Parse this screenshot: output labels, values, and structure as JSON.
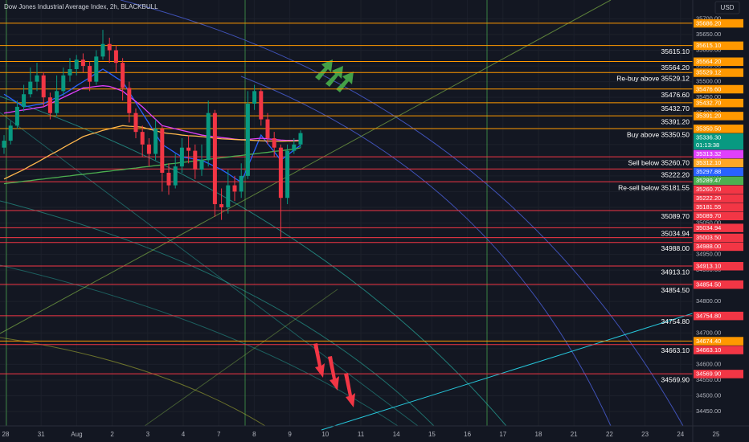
{
  "chart_data": {
    "type": "candlestick",
    "title": "Dow Jones Industrial Average Index, 2h, BLACKBULL",
    "currency": "USD",
    "ylim": [
      34404,
      35760
    ],
    "yticks": [
      {
        "value": 35700,
        "label": "35700.00"
      },
      {
        "value": 35650,
        "label": "35650.00"
      },
      {
        "value": 35600,
        "label": "35600.00"
      },
      {
        "value": 35550,
        "label": "35550.00"
      },
      {
        "value": 35500,
        "label": "35500.00"
      },
      {
        "value": 35450,
        "label": "35450.00"
      },
      {
        "value": 35400,
        "label": "35400.00"
      },
      {
        "value": 35350,
        "label": "35350.00"
      },
      {
        "value": 35300,
        "label": "35300.00"
      },
      {
        "value": 35250,
        "label": "35250.00"
      },
      {
        "value": 35200,
        "label": "35200.00"
      },
      {
        "value": 35150,
        "label": "35150.00"
      },
      {
        "value": 35100,
        "label": "35100.00"
      },
      {
        "value": 35050,
        "label": "35050.00"
      },
      {
        "value": 35000,
        "label": "35000.00"
      },
      {
        "value": 34950,
        "label": "34950.00"
      },
      {
        "value": 34900,
        "label": "34900.00"
      },
      {
        "value": 34850,
        "label": "34850.00"
      },
      {
        "value": 34800,
        "label": "34800.00"
      },
      {
        "value": 34750,
        "label": "34750.00"
      },
      {
        "value": 34700,
        "label": "34700.00"
      },
      {
        "value": 34650,
        "label": "34650.00"
      },
      {
        "value": 34600,
        "label": "34600.00"
      },
      {
        "value": 34550,
        "label": "34550.00"
      },
      {
        "value": 34500,
        "label": "34500.00"
      },
      {
        "value": 34450,
        "label": "34450.00"
      }
    ],
    "dates": [
      "28",
      "31",
      "Aug",
      "2",
      "3",
      "4",
      "7",
      "8",
      "9",
      "10",
      "11",
      "14",
      "15",
      "16",
      "17",
      "18",
      "21",
      "22",
      "23",
      "24",
      "25"
    ],
    "up_color": "#089981",
    "down_color": "#f23645",
    "open": [
      35290,
      35312,
      35360,
      35420,
      35460,
      35500,
      35520,
      35450,
      35400,
      35470,
      35520,
      35540,
      35570,
      35550,
      35500,
      35580,
      35620,
      35600,
      35560,
      35480,
      35400,
      35340,
      35300,
      35270,
      35350,
      35210,
      35170,
      35230,
      35290,
      35280,
      35220,
      35250,
      35400,
      35110,
      35100,
      35170,
      35150,
      35200,
      35430,
      35470,
      35380,
      35320,
      35290,
      35130,
      35280,
      35300
    ],
    "high": [
      35330,
      35375,
      35440,
      35490,
      35545,
      35560,
      35530,
      35465,
      35520,
      35545,
      35575,
      35585,
      35590,
      35565,
      35600,
      35665,
      35640,
      35615,
      35575,
      35500,
      35415,
      35360,
      35320,
      35380,
      35360,
      35240,
      35270,
      35320,
      35330,
      35300,
      35300,
      35440,
      35410,
      35160,
      35220,
      35200,
      35240,
      35470,
      35490,
      35480,
      35400,
      35340,
      35300,
      35300,
      35320,
      35345
    ],
    "low": [
      35270,
      35300,
      35350,
      35405,
      35450,
      35470,
      35420,
      35380,
      35390,
      35455,
      35500,
      35520,
      35530,
      35470,
      35490,
      35570,
      35560,
      35530,
      35440,
      35370,
      35320,
      35260,
      35230,
      35250,
      35150,
      35140,
      35160,
      35210,
      35240,
      35190,
      35200,
      35230,
      35070,
      35060,
      35080,
      35120,
      35130,
      35190,
      35410,
      35360,
      35300,
      35260,
      35000,
      35110,
      35270,
      35290
    ],
    "close": [
      35312,
      35360,
      35420,
      35460,
      35500,
      35520,
      35450,
      35400,
      35470,
      35520,
      35540,
      35570,
      35550,
      35500,
      35580,
      35620,
      35600,
      35560,
      35480,
      35400,
      35340,
      35300,
      35270,
      35350,
      35210,
      35170,
      35230,
      35290,
      35280,
      35220,
      35250,
      35400,
      35110,
      35100,
      35170,
      35150,
      35200,
      35430,
      35470,
      35380,
      35320,
      35290,
      35130,
      35280,
      35300,
      35336.3
    ],
    "indicators": [
      {
        "color": "#2962ff",
        "values": [
          35460,
          35447,
          35433,
          35420,
          35423,
          35427,
          35430,
          35440,
          35450,
          35460,
          35473,
          35487,
          35500,
          35513,
          35527,
          35540,
          35527,
          35513,
          35500,
          35467,
          35433,
          35400,
          35367,
          35333,
          35300,
          35287,
          35273,
          35260,
          35257,
          35253,
          35250,
          35240,
          35230,
          35220,
          35207,
          35193,
          35180,
          35230,
          35280,
          35330,
          35303,
          35277,
          35250,
          35266,
          35282,
          35297.88
        ]
      },
      {
        "color": "#e040fb",
        "values": [
          35400,
          35403,
          35407,
          35410,
          35413,
          35417,
          35420,
          35430,
          35440,
          35450,
          35460,
          35470,
          35480,
          35482,
          35485,
          35487,
          35485,
          35478,
          35470,
          35453,
          35437,
          35420,
          35400,
          35380,
          35360,
          35355,
          35350,
          35345,
          35340,
          35335,
          35330,
          35327,
          35325,
          35322,
          35320,
          35317,
          35315,
          35316,
          35318,
          35320,
          35318,
          35316,
          35314,
          35313,
          35313,
          35313.32
        ]
      },
      {
        "color": "#ffb74d",
        "values": [
          35190,
          35200,
          35210,
          35220,
          35232,
          35243,
          35255,
          35267,
          35278,
          35290,
          35302,
          35313,
          35325,
          35332,
          35338,
          35345,
          35350,
          35355,
          35360,
          35358,
          35357,
          35355,
          35349,
          35344,
          35338,
          35335,
          35333,
          35330,
          35328,
          35327,
          35325,
          35323,
          35320,
          35318,
          35317,
          35316,
          35315,
          35314,
          35313,
          35312,
          35311,
          35311,
          35310,
          35311,
          35311,
          35312.1
        ]
      },
      {
        "color": "#4caf50",
        "values": [
          35175,
          35178,
          35180,
          35183,
          35185,
          35188,
          35190,
          35193,
          35195,
          35198,
          35200,
          35203,
          35205,
          35208,
          35210,
          35213,
          35215,
          35218,
          35220,
          35223,
          35225,
          35228,
          35230,
          35233,
          35235,
          35238,
          35240,
          35243,
          35245,
          35248,
          35250,
          35253,
          35255,
          35258,
          35260,
          35263,
          35265,
          35268,
          35270,
          35273,
          35275,
          35278,
          35280,
          35283,
          35285,
          35289.47
        ]
      }
    ],
    "levels": [
      {
        "value": 35686.2,
        "tag": "35686.20",
        "color": "#ff9800"
      },
      {
        "value": 35615.1,
        "label": "35615.10",
        "tag": "35615.10",
        "color": "#ff9800"
      },
      {
        "value": 35564.2,
        "label": "35564.20",
        "tag": "35564.20",
        "color": "#ff9800"
      },
      {
        "value": 35529.12,
        "label": "Re-buy above 35529.12",
        "tag": "35529.12",
        "color": "#ff9800"
      },
      {
        "value": 35476.6,
        "label": "35476.60",
        "tag": "35476.60",
        "color": "#ff9800"
      },
      {
        "value": 35432.7,
        "label": "35432.70",
        "tag": "35432.70",
        "color": "#ff9800"
      },
      {
        "value": 35391.2,
        "label": "35391.20",
        "tag": "35391.20",
        "color": "#ff9800"
      },
      {
        "value": 35350.5,
        "label": "Buy above 35350.50",
        "tag": "35350.50",
        "color": "#ff9800"
      },
      {
        "value": 35260.7,
        "label": "Sell below 35260.70",
        "tag": "35260.70",
        "color": "#f23645"
      },
      {
        "value": 35222.2,
        "label": "35222.20",
        "tag": "35222.20",
        "color": "#f23645"
      },
      {
        "value": 35181.55,
        "label": "Re-sell below 35181.55",
        "tag": "35181.55",
        "color": "#f23645"
      },
      {
        "value": 35089.7,
        "label": "35089.70",
        "tag": "35089.70",
        "color": "#f23645"
      },
      {
        "value": 35034.94,
        "label": "35034.94",
        "tag": "35034.94",
        "color": "#f23645"
      },
      {
        "value": 35003.5,
        "tag": "35003.50",
        "color": "#f23645"
      },
      {
        "value": 34988.0,
        "label": "34988.00",
        "tag": "34988.00",
        "color": "#f23645"
      },
      {
        "value": 34913.1,
        "label": "34913.10",
        "tag": "34913.10",
        "color": "#f23645"
      },
      {
        "value": 34854.5,
        "label": "34854.50",
        "tag": "34854.50",
        "color": "#f23645"
      },
      {
        "value": 34754.8,
        "label": "34754.80",
        "tag": "34754.80",
        "color": "#f23645"
      },
      {
        "value": 34674.4,
        "tag": "34674.40",
        "color": "#ff9800"
      },
      {
        "value": 34663.1,
        "label": "34663.10",
        "tag": "34663.10",
        "color": "#f23645"
      },
      {
        "value": 34569.9,
        "label": "34569.90",
        "tag": "34569.90",
        "color": "#f23645"
      }
    ],
    "indicator_tags": [
      {
        "value": 35336.3,
        "tag": "35336.30",
        "countdown": "01:13:38",
        "color": "#089981"
      },
      {
        "value": 35313.32,
        "tag": "35313.32",
        "color": "#e040fb"
      },
      {
        "value": 35312.1,
        "tag": "35312.10",
        "color": "#ffa726"
      },
      {
        "value": 35297.88,
        "tag": "35297.88",
        "color": "#2962ff"
      },
      {
        "value": 35289.47,
        "tag": "35289.47",
        "color": "#4caf50"
      }
    ]
  }
}
